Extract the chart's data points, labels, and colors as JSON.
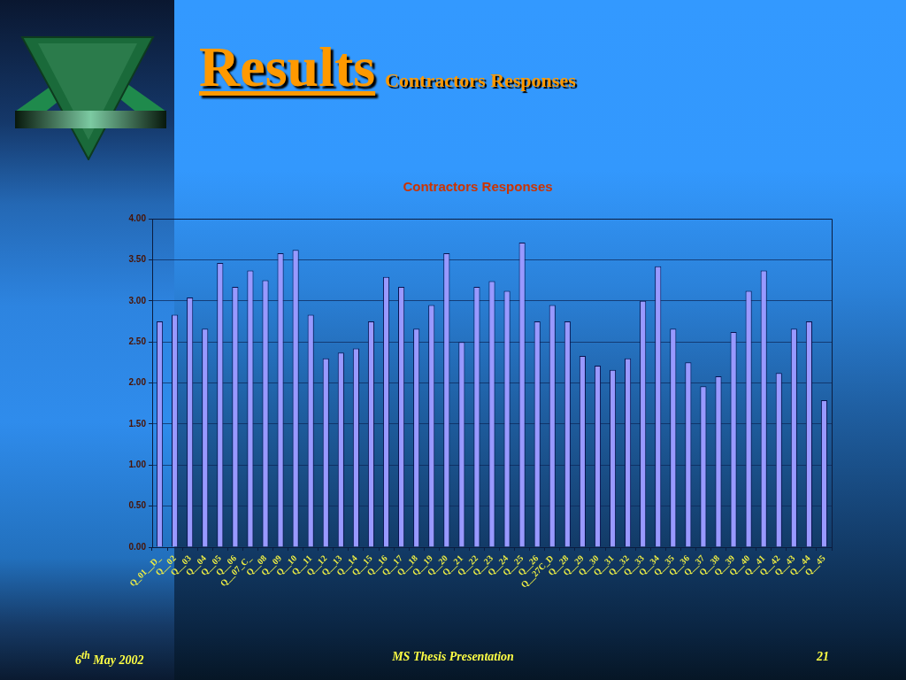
{
  "chart_data": {
    "type": "bar",
    "title": "Contractors Responses",
    "categories": [
      "Q_01__D_",
      "Q__02",
      "Q__03",
      "Q__04",
      "Q__05",
      "Q__06",
      "Q__07_C_",
      "Q__08",
      "Q__09",
      "Q__10",
      "Q__11",
      "Q__12",
      "Q__13",
      "Q__14",
      "Q__15",
      "Q__16",
      "Q__17",
      "Q__18",
      "Q__19",
      "Q__20",
      "Q__21",
      "Q__22",
      "Q__23",
      "Q__24",
      "Q__25",
      "Q__26",
      "Q__27C_D",
      "Q__28",
      "Q__29",
      "Q__30",
      "Q__31",
      "Q__32",
      "Q__33",
      "Q__34",
      "Q__35",
      "Q__36",
      "Q__37",
      "Q__38",
      "Q__39",
      "Q__40",
      "Q__41",
      "Q__42",
      "Q__43",
      "Q__44",
      "Q__45"
    ],
    "values": [
      2.75,
      2.83,
      3.04,
      2.66,
      3.46,
      3.17,
      3.37,
      3.25,
      3.58,
      3.62,
      2.83,
      2.3,
      2.37,
      2.42,
      2.75,
      3.29,
      3.17,
      2.66,
      2.95,
      3.58,
      2.5,
      3.17,
      3.24,
      3.12,
      3.71,
      2.75,
      2.95,
      2.75,
      2.33,
      2.21,
      2.16,
      2.3,
      3.0,
      3.42,
      2.66,
      2.25,
      1.96,
      2.08,
      2.62,
      3.12,
      3.37,
      2.12,
      2.66,
      2.75,
      1.79
    ],
    "color": "#9999ff",
    "ylim": [
      0,
      4
    ],
    "yticks": [
      {
        "value": 0,
        "label": "0.00"
      },
      {
        "value": 0.5,
        "label": "0.50"
      },
      {
        "value": 1,
        "label": "1.00"
      },
      {
        "value": 1.5,
        "label": "1.50"
      },
      {
        "value": 2,
        "label": "2.00"
      },
      {
        "value": 2.5,
        "label": "2.50"
      },
      {
        "value": 3,
        "label": "3.00"
      },
      {
        "value": 3.5,
        "label": "3.50"
      },
      {
        "value": 4,
        "label": "4.00"
      }
    ],
    "grid": "y",
    "annotations": [
      "Results",
      "Contractors Responses",
      "6$^{th}$ May 2002",
      "MS Thesis Presentation",
      "21"
    ]
  }
}
